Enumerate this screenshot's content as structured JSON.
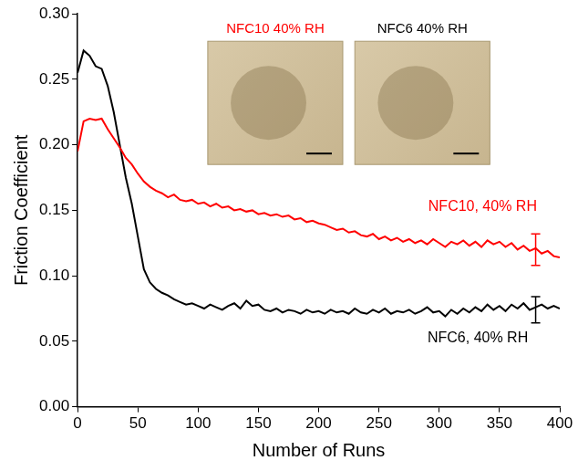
{
  "chart_data": {
    "type": "line",
    "x_label": "Number of Runs",
    "y_label": "Friction Coefficient",
    "x": [
      0,
      5,
      10,
      15,
      20,
      25,
      30,
      35,
      40,
      45,
      50,
      55,
      60,
      65,
      70,
      75,
      80,
      85,
      90,
      95,
      100,
      105,
      110,
      115,
      120,
      125,
      130,
      135,
      140,
      145,
      150,
      155,
      160,
      165,
      170,
      175,
      180,
      185,
      190,
      195,
      200,
      205,
      210,
      215,
      220,
      225,
      230,
      235,
      240,
      245,
      250,
      255,
      260,
      265,
      270,
      275,
      280,
      285,
      290,
      295,
      300,
      305,
      310,
      315,
      320,
      325,
      330,
      335,
      340,
      345,
      350,
      355,
      360,
      365,
      370,
      375,
      380,
      385,
      390,
      395,
      400
    ],
    "series": [
      {
        "name": "NFC10, 40% RH",
        "color": "#ff0000",
        "values": [
          0.195,
          0.218,
          0.22,
          0.219,
          0.22,
          0.212,
          0.205,
          0.198,
          0.19,
          0.185,
          0.178,
          0.172,
          0.168,
          0.165,
          0.163,
          0.16,
          0.162,
          0.158,
          0.157,
          0.158,
          0.155,
          0.156,
          0.153,
          0.155,
          0.152,
          0.153,
          0.15,
          0.151,
          0.149,
          0.15,
          0.147,
          0.148,
          0.146,
          0.147,
          0.145,
          0.146,
          0.143,
          0.144,
          0.141,
          0.142,
          0.14,
          0.139,
          0.137,
          0.135,
          0.136,
          0.133,
          0.134,
          0.131,
          0.13,
          0.132,
          0.128,
          0.13,
          0.127,
          0.129,
          0.126,
          0.128,
          0.125,
          0.127,
          0.124,
          0.128,
          0.125,
          0.122,
          0.126,
          0.124,
          0.127,
          0.123,
          0.126,
          0.122,
          0.127,
          0.124,
          0.126,
          0.122,
          0.125,
          0.12,
          0.123,
          0.119,
          0.121,
          0.117,
          0.119,
          0.115,
          0.114
        ],
        "error_bar": {
          "x": 380,
          "value": 0.12,
          "error": 0.012
        }
      },
      {
        "name": "NFC6, 40% RH",
        "color": "#000000",
        "values": [
          0.255,
          0.272,
          0.268,
          0.26,
          0.258,
          0.245,
          0.225,
          0.2,
          0.175,
          0.155,
          0.13,
          0.105,
          0.095,
          0.09,
          0.087,
          0.085,
          0.082,
          0.08,
          0.078,
          0.079,
          0.077,
          0.075,
          0.078,
          0.076,
          0.074,
          0.077,
          0.079,
          0.075,
          0.081,
          0.077,
          0.078,
          0.074,
          0.073,
          0.075,
          0.072,
          0.074,
          0.073,
          0.071,
          0.074,
          0.072,
          0.073,
          0.071,
          0.074,
          0.072,
          0.073,
          0.071,
          0.075,
          0.072,
          0.071,
          0.074,
          0.072,
          0.075,
          0.071,
          0.073,
          0.072,
          0.074,
          0.071,
          0.073,
          0.076,
          0.072,
          0.073,
          0.069,
          0.074,
          0.071,
          0.075,
          0.072,
          0.076,
          0.073,
          0.078,
          0.074,
          0.077,
          0.073,
          0.078,
          0.075,
          0.079,
          0.074,
          0.076,
          0.078,
          0.075,
          0.077,
          0.075
        ],
        "error_bar": {
          "x": 380,
          "value": 0.074,
          "error": 0.01
        }
      }
    ],
    "xlim": [
      0,
      400
    ],
    "xticks": [
      0,
      50,
      100,
      150,
      200,
      250,
      300,
      350,
      400
    ],
    "ylim": [
      0,
      0.3
    ],
    "yticks": [
      {
        "value": 0,
        "label": "0.00"
      },
      {
        "value": 0.05,
        "label": "0.05"
      },
      {
        "value": 0.1,
        "label": "0.10"
      },
      {
        "value": 0.15,
        "label": "0.15"
      },
      {
        "value": 0.2,
        "label": "0.20"
      },
      {
        "value": 0.25,
        "label": "0.25"
      },
      {
        "value": 0.3,
        "label": "0.30"
      }
    ],
    "grid": false,
    "insets": [
      {
        "title": "NFC10 40% RH",
        "color": "#ff0000"
      },
      {
        "title": "NFC6 40% RH",
        "color": "#000000"
      }
    ]
  }
}
